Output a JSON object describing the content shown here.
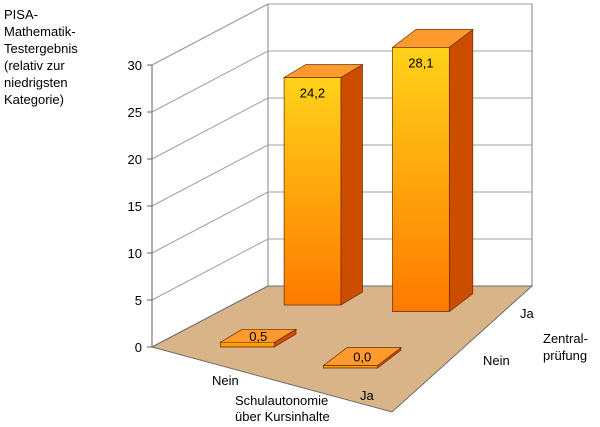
{
  "chart_data": {
    "type": "bar",
    "ylabel_lines": [
      "PISA-",
      "Mathematik-",
      "Testergebnis",
      "(relativ zur",
      "niedrigsten",
      "Kategorie)"
    ],
    "ylim": [
      0,
      30
    ],
    "yticks": [
      "0",
      "5",
      "10",
      "15",
      "20",
      "25",
      "30"
    ],
    "x_axis": {
      "label_lines": [
        "Schulautonomie",
        "über Kursinhalte"
      ],
      "categories": [
        "Nein",
        "Ja"
      ]
    },
    "depth_axis": {
      "label_lines": [
        "Zentral-",
        "prüfung"
      ],
      "categories": [
        "Nein",
        "Ja"
      ]
    },
    "bars": [
      {
        "x": "Nein",
        "depth": "Nein",
        "value": 0.5,
        "label": "0,5"
      },
      {
        "x": "Ja",
        "depth": "Nein",
        "value": 0.0,
        "label": "0,0"
      },
      {
        "x": "Nein",
        "depth": "Ja",
        "value": 24.2,
        "label": "24,2"
      },
      {
        "x": "Ja",
        "depth": "Ja",
        "value": 28.1,
        "label": "28,1"
      }
    ],
    "grid": true,
    "colors": {
      "bar_front_top": "#ffd21a",
      "bar_front_bottom": "#ff7a00",
      "bar_side": "#cc4d00",
      "bar_top": "#ff9a2e",
      "floor": "#d8b488",
      "gridline": "#a0a0a0"
    }
  }
}
